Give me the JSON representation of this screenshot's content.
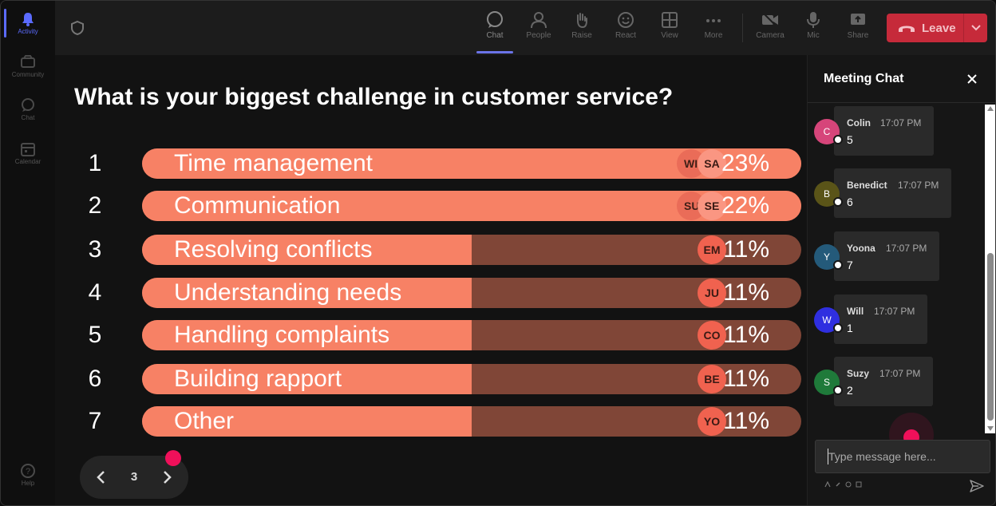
{
  "rail": {
    "items": [
      {
        "label": "Activity",
        "icon": "bell-icon"
      },
      {
        "label": "Community",
        "icon": "community-icon"
      },
      {
        "label": "Chat",
        "icon": "chat-bubble-icon"
      },
      {
        "label": "Calendar",
        "icon": "calendar-icon"
      }
    ],
    "help": {
      "label": "Help",
      "icon": "help-icon"
    }
  },
  "toolbar": {
    "chat": "Chat",
    "people": "People",
    "raise": "Raise",
    "react": "React",
    "view": "View",
    "more": "More",
    "camera": "Camera",
    "mic": "Mic",
    "share": "Share",
    "leave": "Leave"
  },
  "poll": {
    "question": "What is your biggest challenge in customer service?",
    "options": [
      {
        "num": "1",
        "label": "Time management",
        "pct": "23%",
        "fraction": 1.0,
        "voters": [
          "WI",
          "SA"
        ]
      },
      {
        "num": "2",
        "label": "Communication",
        "pct": "22%",
        "fraction": 1.0,
        "voters": [
          "SU",
          "SE"
        ]
      },
      {
        "num": "3",
        "label": "Resolving conflicts",
        "pct": "11%",
        "fraction": 0.5,
        "voters": [
          "EM"
        ]
      },
      {
        "num": "4",
        "label": "Understanding needs",
        "pct": "11%",
        "fraction": 0.5,
        "voters": [
          "JU"
        ]
      },
      {
        "num": "5",
        "label": "Handling complaints",
        "pct": "11%",
        "fraction": 0.5,
        "voters": [
          "CO"
        ]
      },
      {
        "num": "6",
        "label": "Building rapport",
        "pct": "11%",
        "fraction": 0.5,
        "voters": [
          "BE"
        ]
      },
      {
        "num": "7",
        "label": "Other",
        "pct": "11%",
        "fraction": 0.5,
        "voters": [
          "YO"
        ]
      }
    ],
    "page": "3"
  },
  "chat": {
    "title": "Meeting Chat",
    "messages": [
      {
        "initial": "C",
        "name": "Colin",
        "time": "17:07 PM",
        "text": "5",
        "color": "#d6457a"
      },
      {
        "initial": "B",
        "name": "Benedict",
        "time": "17:07 PM",
        "text": "6",
        "color": "#5a5418"
      },
      {
        "initial": "Y",
        "name": "Yoona",
        "time": "17:07 PM",
        "text": "7",
        "color": "#245a7a"
      },
      {
        "initial": "W",
        "name": "Will",
        "time": "17:07 PM",
        "text": "1",
        "color": "#2f2fe0"
      },
      {
        "initial": "S",
        "name": "Suzy",
        "time": "17:07 PM",
        "text": "2",
        "color": "#1f7a3a"
      }
    ],
    "input_placeholder": "Type message here..."
  },
  "colors": {
    "bar_fill": "#f78165",
    "bar_track": "#804637",
    "leave": "#c62a3a",
    "accent": "#5b6bff",
    "pointer": "#f0105a"
  }
}
